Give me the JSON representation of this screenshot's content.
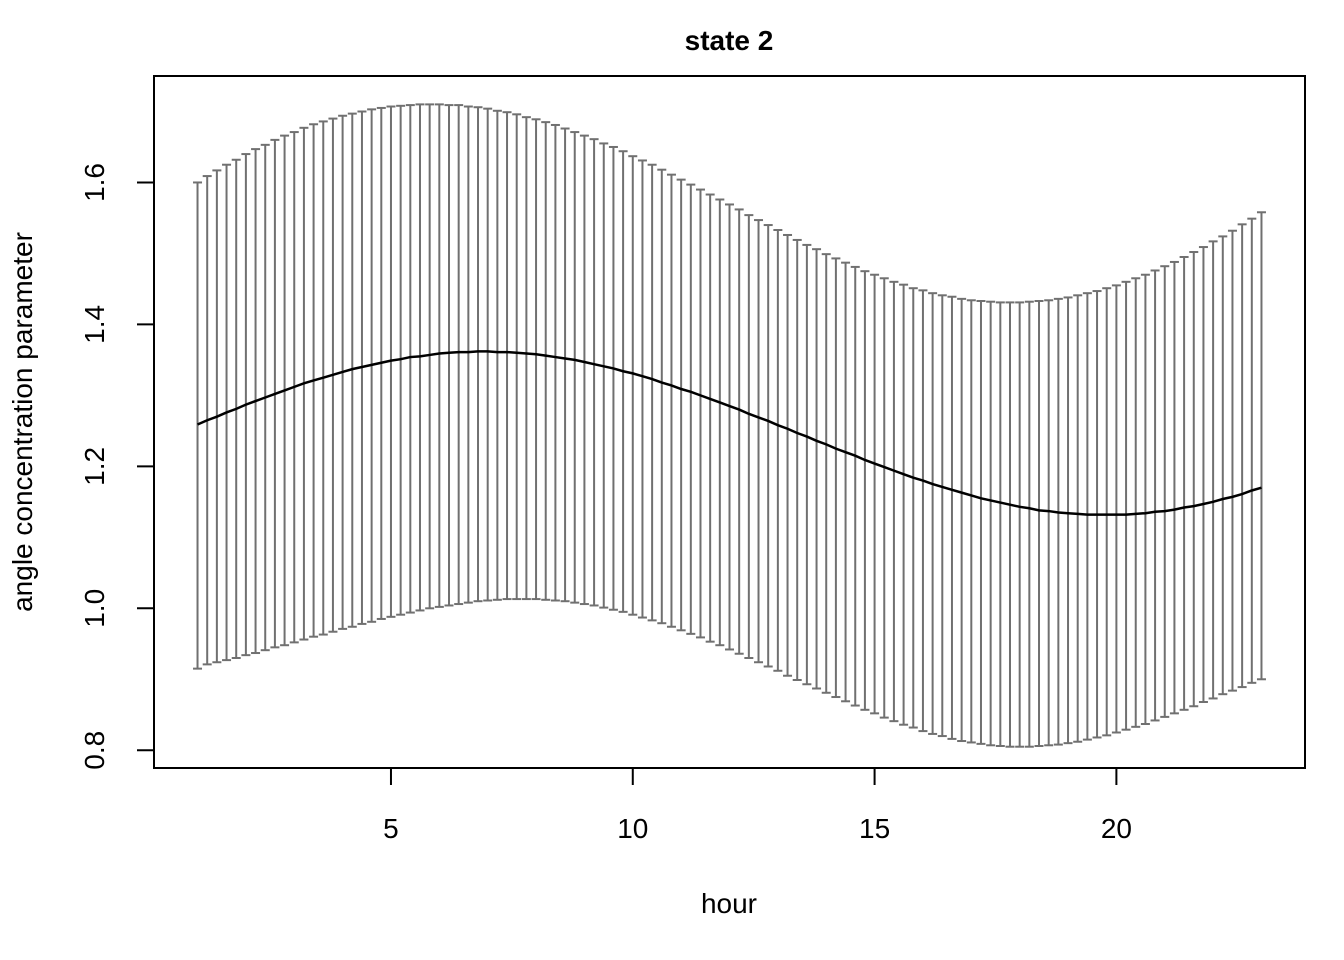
{
  "chart_data": {
    "type": "line",
    "title": "state 2",
    "xlabel": "hour",
    "ylabel": "angle concentration parameter",
    "xlim": [
      0.1,
      23.9
    ],
    "ylim": [
      0.775,
      1.75
    ],
    "x_ticks": [
      5,
      10,
      15,
      20
    ],
    "y_ticks": [
      0.8,
      1.0,
      1.2,
      1.4,
      1.6
    ],
    "x_tick_labels": [
      "5",
      "10",
      "15",
      "20"
    ],
    "y_tick_labels": [
      "0.8",
      "1.0",
      "1.2",
      "1.4",
      "1.6"
    ],
    "grid": false,
    "legend": "none",
    "colors": {
      "estimate": "#000000",
      "ci": "#707070",
      "axes": "#000000"
    },
    "x": [
      1.0,
      1.2,
      1.4,
      1.6,
      1.8,
      2.0,
      2.2,
      2.4,
      2.6,
      2.8,
      3.0,
      3.2,
      3.4,
      3.6,
      3.8,
      4.0,
      4.2,
      4.4,
      4.6,
      4.8,
      5.0,
      5.2,
      5.4,
      5.6,
      5.8,
      6.0,
      6.2,
      6.4,
      6.6,
      6.8,
      7.0,
      7.2,
      7.4,
      7.6,
      7.8,
      8.0,
      8.2,
      8.4,
      8.6,
      8.8,
      9.0,
      9.2,
      9.4,
      9.6,
      9.8,
      10.0,
      10.2,
      10.4,
      10.6,
      10.8,
      11.0,
      11.2,
      11.4,
      11.6,
      11.8,
      12.0,
      12.2,
      12.4,
      12.6,
      12.8,
      13.0,
      13.2,
      13.4,
      13.6,
      13.8,
      14.0,
      14.2,
      14.4,
      14.6,
      14.8,
      15.0,
      15.2,
      15.4,
      15.6,
      15.8,
      16.0,
      16.2,
      16.4,
      16.6,
      16.8,
      17.0,
      17.2,
      17.4,
      17.6,
      17.8,
      18.0,
      18.2,
      18.4,
      18.6,
      18.8,
      19.0,
      19.2,
      19.4,
      19.6,
      19.8,
      20.0,
      20.2,
      20.4,
      20.6,
      20.8,
      21.0,
      21.2,
      21.4,
      21.6,
      21.8,
      22.0,
      22.2,
      22.4,
      22.6,
      22.8,
      23.0
    ],
    "series": [
      {
        "role": "estimate",
        "values": [
          1.259,
          1.265,
          1.27,
          1.276,
          1.281,
          1.287,
          1.292,
          1.297,
          1.302,
          1.307,
          1.312,
          1.317,
          1.321,
          1.325,
          1.329,
          1.333,
          1.337,
          1.34,
          1.343,
          1.346,
          1.349,
          1.351,
          1.354,
          1.355,
          1.357,
          1.359,
          1.36,
          1.361,
          1.361,
          1.362,
          1.362,
          1.361,
          1.361,
          1.36,
          1.359,
          1.358,
          1.356,
          1.354,
          1.352,
          1.35,
          1.347,
          1.344,
          1.341,
          1.338,
          1.334,
          1.331,
          1.327,
          1.323,
          1.318,
          1.314,
          1.309,
          1.305,
          1.3,
          1.295,
          1.29,
          1.285,
          1.28,
          1.274,
          1.269,
          1.264,
          1.258,
          1.253,
          1.247,
          1.242,
          1.236,
          1.231,
          1.225,
          1.22,
          1.215,
          1.209,
          1.204,
          1.199,
          1.194,
          1.189,
          1.184,
          1.18,
          1.175,
          1.171,
          1.167,
          1.163,
          1.159,
          1.155,
          1.152,
          1.149,
          1.146,
          1.143,
          1.141,
          1.138,
          1.137,
          1.135,
          1.134,
          1.133,
          1.132,
          1.132,
          1.132,
          1.132,
          1.132,
          1.133,
          1.134,
          1.136,
          1.137,
          1.139,
          1.142,
          1.144,
          1.147,
          1.15,
          1.154,
          1.157,
          1.161,
          1.166,
          1.17
        ]
      },
      {
        "role": "upper",
        "values": [
          1.6,
          1.609,
          1.617,
          1.625,
          1.632,
          1.64,
          1.647,
          1.653,
          1.66,
          1.666,
          1.671,
          1.677,
          1.682,
          1.686,
          1.69,
          1.694,
          1.697,
          1.7,
          1.703,
          1.705,
          1.707,
          1.708,
          1.709,
          1.71,
          1.71,
          1.71,
          1.709,
          1.709,
          1.707,
          1.706,
          1.704,
          1.701,
          1.699,
          1.696,
          1.692,
          1.689,
          1.685,
          1.681,
          1.676,
          1.671,
          1.666,
          1.661,
          1.655,
          1.65,
          1.644,
          1.637,
          1.631,
          1.625,
          1.618,
          1.611,
          1.604,
          1.597,
          1.59,
          1.583,
          1.576,
          1.569,
          1.562,
          1.554,
          1.547,
          1.54,
          1.533,
          1.526,
          1.519,
          1.512,
          1.506,
          1.499,
          1.493,
          1.487,
          1.481,
          1.475,
          1.47,
          1.465,
          1.46,
          1.456,
          1.451,
          1.448,
          1.444,
          1.441,
          1.439,
          1.436,
          1.434,
          1.433,
          1.432,
          1.431,
          1.431,
          1.431,
          1.432,
          1.433,
          1.434,
          1.436,
          1.438,
          1.441,
          1.444,
          1.447,
          1.451,
          1.455,
          1.46,
          1.465,
          1.47,
          1.476,
          1.482,
          1.488,
          1.495,
          1.502,
          1.509,
          1.517,
          1.524,
          1.532,
          1.541,
          1.549,
          1.558
        ]
      },
      {
        "role": "lower",
        "values": [
          0.915,
          0.921,
          0.924,
          0.927,
          0.93,
          0.934,
          0.937,
          0.941,
          0.945,
          0.948,
          0.952,
          0.956,
          0.96,
          0.963,
          0.967,
          0.971,
          0.974,
          0.978,
          0.981,
          0.985,
          0.988,
          0.991,
          0.994,
          0.997,
          1.0,
          1.002,
          1.004,
          1.006,
          1.008,
          1.01,
          1.011,
          1.012,
          1.013,
          1.013,
          1.013,
          1.013,
          1.012,
          1.011,
          1.01,
          1.008,
          1.006,
          1.004,
          1.001,
          0.998,
          0.995,
          0.991,
          0.987,
          0.983,
          0.979,
          0.974,
          0.969,
          0.964,
          0.959,
          0.953,
          0.948,
          0.942,
          0.936,
          0.93,
          0.924,
          0.918,
          0.912,
          0.905,
          0.899,
          0.893,
          0.887,
          0.881,
          0.875,
          0.869,
          0.863,
          0.857,
          0.852,
          0.846,
          0.841,
          0.836,
          0.832,
          0.827,
          0.823,
          0.82,
          0.816,
          0.813,
          0.811,
          0.809,
          0.807,
          0.806,
          0.805,
          0.805,
          0.805,
          0.806,
          0.807,
          0.808,
          0.81,
          0.812,
          0.815,
          0.818,
          0.821,
          0.825,
          0.829,
          0.833,
          0.837,
          0.842,
          0.847,
          0.852,
          0.857,
          0.862,
          0.868,
          0.873,
          0.879,
          0.884,
          0.889,
          0.895,
          0.9
        ]
      }
    ]
  }
}
